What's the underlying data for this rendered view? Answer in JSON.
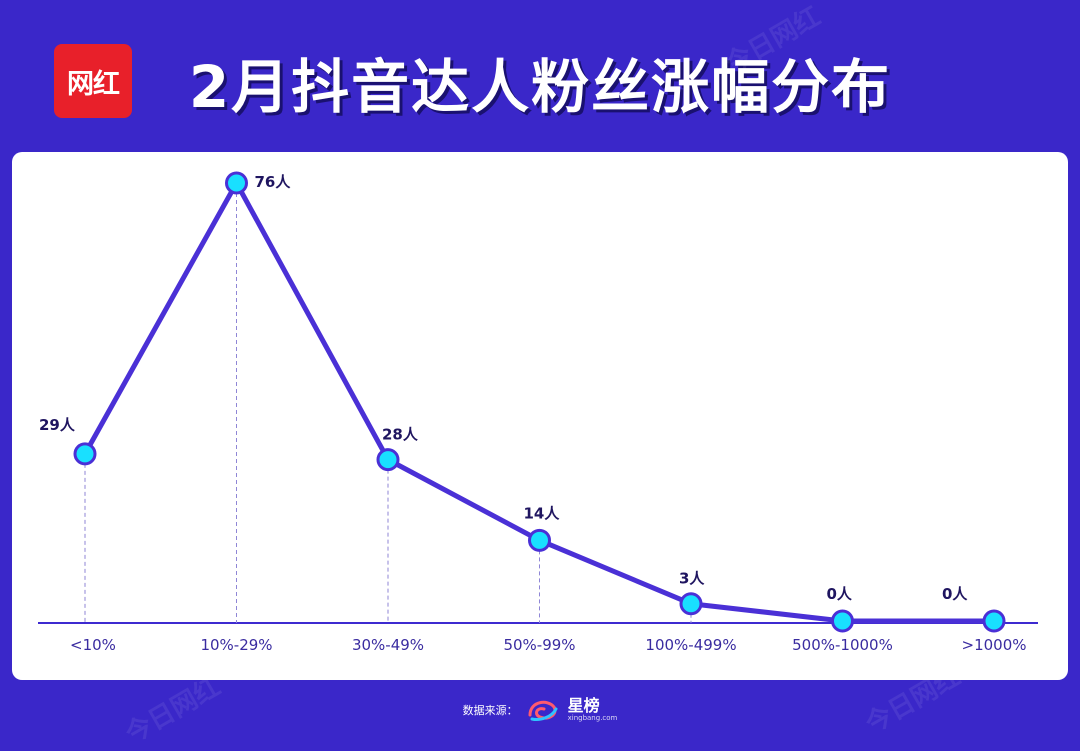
{
  "logo_text": "网红",
  "title": "2月抖音达人粉丝涨幅分布",
  "footer": {
    "source_label": "数据来源：",
    "brand": "星榜",
    "brand_sub": "xingbang.com"
  },
  "watermark_text": "今日网红",
  "colors": {
    "background": "#3a27c9",
    "line": "#4a30d6",
    "marker_fill": "#19e0ff",
    "logo_red": "#e8202a"
  },
  "chart_data": {
    "type": "line",
    "title": "2月抖音达人粉丝涨幅分布",
    "categories": [
      "<10%",
      "10%-29%",
      "30%-49%",
      "50%-99%",
      "100%-499%",
      "500%-1000%",
      ">1000%"
    ],
    "values": [
      29,
      76,
      28,
      14,
      3,
      0,
      0
    ],
    "data_labels": [
      "29人",
      "76人",
      "28人",
      "14人",
      "3人",
      "0人",
      "0人"
    ],
    "ylim": [
      0,
      76
    ],
    "xlabel": "",
    "ylabel": "",
    "grid": false,
    "legend": "none"
  }
}
